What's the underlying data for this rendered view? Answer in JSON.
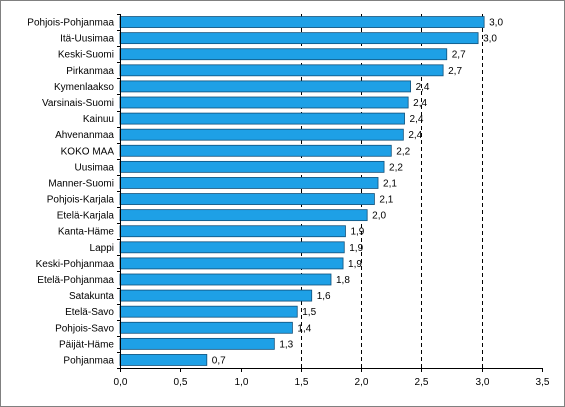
{
  "chart_data": {
    "type": "bar",
    "orientation": "horizontal",
    "categories": [
      "Pohjois-Pohjanmaa",
      "Itä-Uusimaa",
      "Keski-Suomi",
      "Pirkanmaa",
      "Kymenlaakso",
      "Varsinais-Suomi",
      "Kainuu",
      "Ahvenanmaa",
      "KOKO MAA",
      "Uusimaa",
      "Manner-Suomi",
      "Pohjois-Karjala",
      "Etelä-Karjala",
      "Kanta-Häme",
      "Lappi",
      "Keski-Pohjanmaa",
      "Etelä-Pohjanmaa",
      "Satakunta",
      "Etelä-Savo",
      "Pohjois-Savo",
      "Päijät-Häme",
      "Pohjanmaa"
    ],
    "values": [
      3.02,
      2.97,
      2.71,
      2.68,
      2.41,
      2.39,
      2.36,
      2.35,
      2.25,
      2.19,
      2.14,
      2.11,
      2.05,
      1.87,
      1.86,
      1.85,
      1.75,
      1.59,
      1.47,
      1.43,
      1.28,
      0.72
    ],
    "value_labels": [
      "3,0",
      "3,0",
      "2,7",
      "2,7",
      "2,4",
      "2,4",
      "2,4",
      "2,4",
      "2,2",
      "2,2",
      "2,1",
      "2,1",
      "2,0",
      "1,9",
      "1,9",
      "1,9",
      "1,8",
      "1,6",
      "1,5",
      "1,4",
      "1,3",
      "0,7"
    ],
    "xlim": [
      0,
      3.5
    ],
    "xticks": [
      0,
      0.5,
      1,
      1.5,
      2,
      2.5,
      3,
      3.5
    ],
    "xtick_labels": [
      "0,0",
      "0,5",
      "1,0",
      "1,5",
      "2,0",
      "2,5",
      "3,0",
      "3,5"
    ],
    "gridlines": [
      1.5,
      2,
      2.5,
      3
    ],
    "grid": "vertical dashed",
    "legend": "none",
    "title": "",
    "xlabel": "",
    "ylabel": "",
    "colors": {
      "bar_fill": "#1ea0e6",
      "bar_edge": "#10507a",
      "axis": "#000000",
      "grid": "#000000",
      "border": "#808080"
    }
  }
}
